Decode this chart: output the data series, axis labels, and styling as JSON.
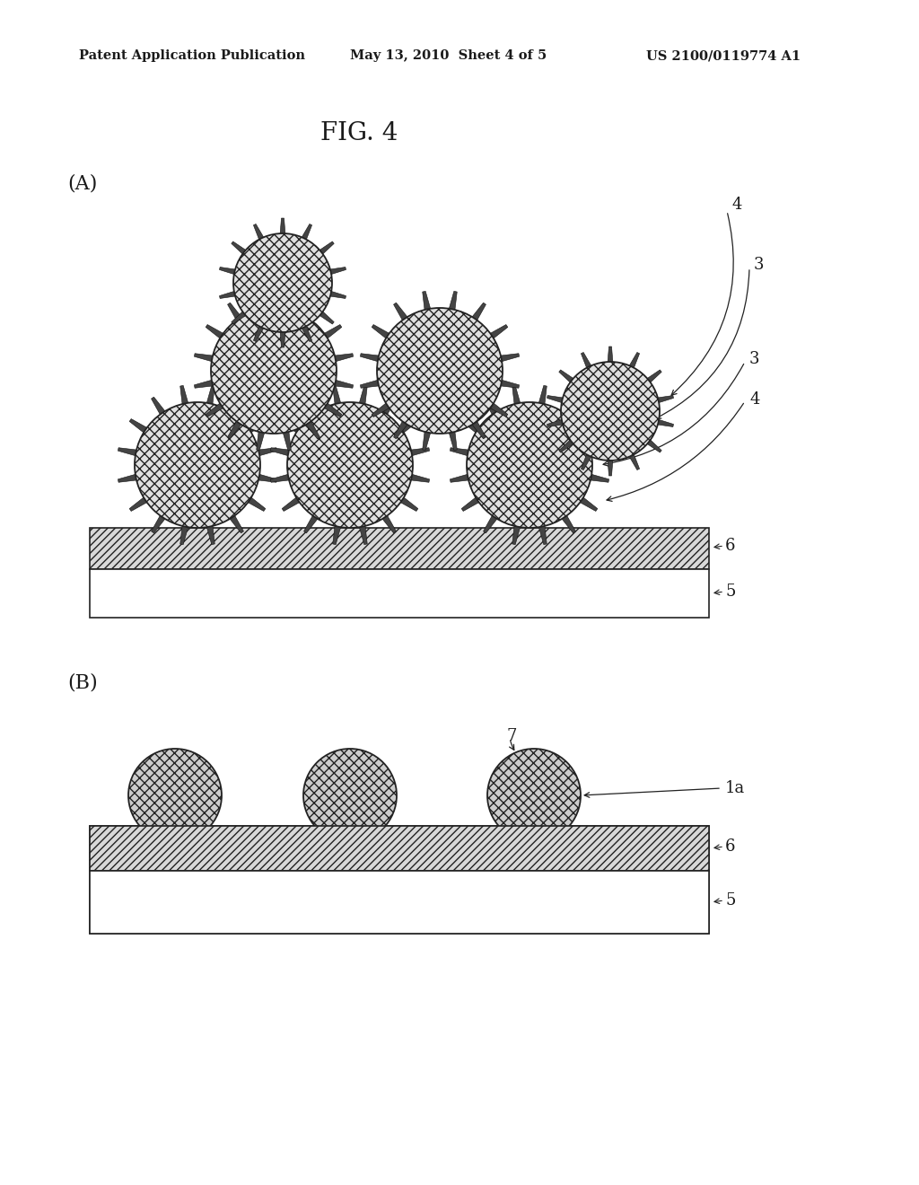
{
  "bg_color": "#ffffff",
  "header_left": "Patent Application Publication",
  "header_center": "May 13, 2010  Sheet 4 of 5",
  "header_right": "US 2100/0119774 A1",
  "fig_title": "FIG. 4",
  "label_A": "(A)",
  "label_B": "(B)",
  "text_color": "#1a1a1a",
  "sphere_fill": "#e0e0e0",
  "sphere_edge": "#222222",
  "layer6_hatch": "////",
  "layer5_fill": "#ffffff",
  "layer5_edge": "#222222"
}
